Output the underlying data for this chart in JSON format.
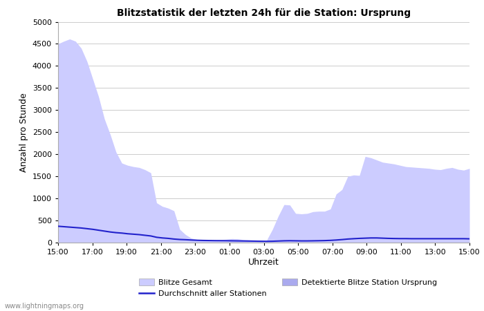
{
  "title": "Blitzstatistik der letzten 24h für die Station: Ursprung",
  "xlabel": "Uhrzeit",
  "ylabel": "Anzahl pro Stunde",
  "x_ticks": [
    "15:00",
    "17:00",
    "19:00",
    "21:00",
    "23:00",
    "01:00",
    "03:00",
    "05:00",
    "07:00",
    "09:00",
    "11:00",
    "13:00",
    "15:00"
  ],
  "ylim": [
    0,
    5000
  ],
  "yticks": [
    0,
    500,
    1000,
    1500,
    2000,
    2500,
    3000,
    3500,
    4000,
    4500,
    5000
  ],
  "bg_color": "#ffffff",
  "plot_bg_color": "#ffffff",
  "grid_color": "#cccccc",
  "area_gesamt_color": "#ccccff",
  "area_station_color": "#aaaaee",
  "line_color": "#2222cc",
  "watermark": "www.lightningmaps.org",
  "legend_gesamt": "Blitze Gesamt",
  "legend_station": "Detektierte Blitze Station Ursprung",
  "legend_avg": "Durchschnitt aller Stationen",
  "gesamt": [
    4500,
    4560,
    4610,
    4560,
    4400,
    4100,
    3700,
    3300,
    2800,
    2450,
    2050,
    1800,
    1750,
    1720,
    1700,
    1650,
    1580,
    900,
    820,
    780,
    720,
    300,
    180,
    100,
    70,
    60,
    50,
    55,
    65,
    75,
    90,
    85,
    65,
    60,
    55,
    50,
    55,
    300,
    600,
    860,
    850,
    660,
    650,
    660,
    700,
    710,
    710,
    760,
    1100,
    1200,
    1500,
    1530,
    1520,
    1950,
    1920,
    1870,
    1820,
    1800,
    1780,
    1750,
    1720,
    1710,
    1700,
    1690,
    1680,
    1660,
    1650,
    1680,
    1700,
    1660,
    1640,
    1680
  ],
  "avg": [
    370,
    360,
    350,
    340,
    330,
    315,
    300,
    280,
    260,
    240,
    225,
    215,
    200,
    190,
    180,
    165,
    150,
    120,
    105,
    95,
    80,
    70,
    65,
    58,
    52,
    48,
    46,
    44,
    43,
    42,
    40,
    38,
    36,
    34,
    32,
    30,
    28,
    30,
    35,
    40,
    42,
    40,
    38,
    38,
    40,
    42,
    45,
    50,
    58,
    68,
    80,
    88,
    95,
    100,
    105,
    105,
    100,
    95,
    92,
    90,
    90,
    88,
    88,
    88,
    88,
    88,
    88,
    88,
    88,
    88,
    88,
    85
  ],
  "station": [
    0,
    0,
    0,
    0,
    0,
    0,
    0,
    0,
    0,
    0,
    0,
    0,
    0,
    0,
    0,
    0,
    0,
    0,
    0,
    0,
    0,
    0,
    0,
    0,
    0,
    0,
    0,
    0,
    0,
    0,
    0,
    0,
    0,
    0,
    0,
    0,
    0,
    0,
    0,
    0,
    0,
    0,
    0,
    0,
    0,
    0,
    0,
    0,
    0,
    0,
    0,
    0,
    0,
    0,
    0,
    0,
    0,
    0,
    0,
    0,
    0,
    0,
    0,
    0,
    0,
    0,
    0,
    0,
    0,
    0,
    0,
    0
  ]
}
